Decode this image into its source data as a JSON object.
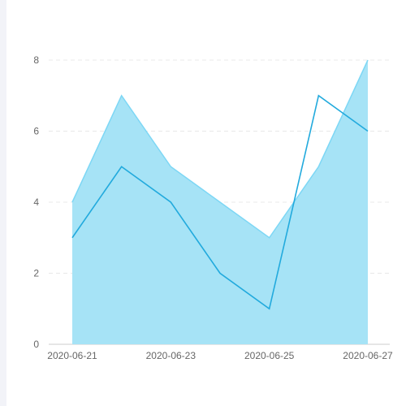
{
  "chart_data": {
    "type": "area",
    "title": "",
    "xlabel": "",
    "ylabel": "",
    "ylim": [
      0,
      8
    ],
    "y_ticks": [
      "0",
      "2",
      "4",
      "6",
      "8"
    ],
    "x": [
      "2020-06-21",
      "2020-06-22",
      "2020-06-23",
      "2020-06-24",
      "2020-06-25",
      "2020-06-26",
      "2020-06-27"
    ],
    "x_tick_labels": [
      "2020-06-21",
      "2020-06-23",
      "2020-06-25",
      "2020-06-27"
    ],
    "grid": "horizontal dashed",
    "series": [
      {
        "type": "area",
        "values": [
          4,
          7,
          5,
          4,
          3,
          5,
          8
        ],
        "color": "#7dd7f5"
      },
      {
        "type": "line",
        "values": [
          3,
          5,
          4,
          2,
          1,
          7,
          6
        ],
        "color": "#22aadd"
      }
    ]
  },
  "colors": {
    "area_fill": "#a6e3f6",
    "area_stroke": "#7dd7f5",
    "line_stroke": "#22aadd",
    "grid": "#e8e8e8",
    "axis_text": "#666666",
    "axis_line": "#cccccc",
    "sidebar": "#f2f3f8"
  }
}
